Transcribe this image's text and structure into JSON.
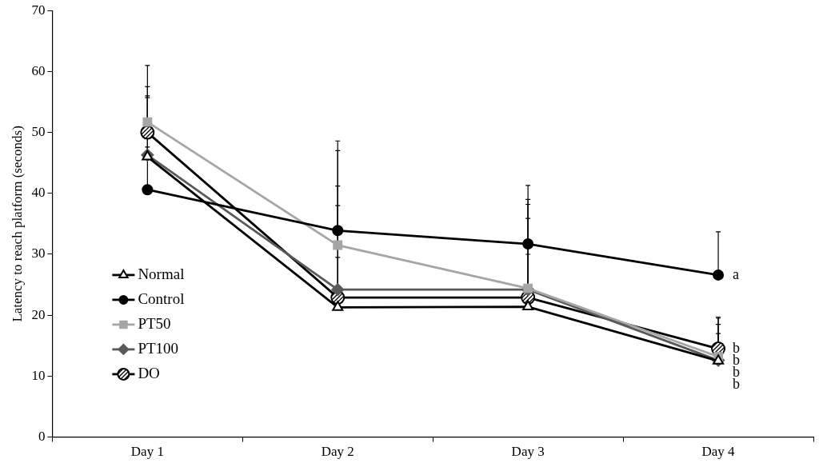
{
  "chart_data": {
    "type": "line",
    "y_label": "Latency to reach platform (seconds)",
    "categories": [
      "Day 1",
      "Day 2",
      "Day 3",
      "Day 4"
    ],
    "ylim": [
      0,
      70
    ],
    "yticks": [
      0,
      10,
      20,
      30,
      40,
      50,
      60,
      70
    ],
    "grid": false,
    "legend": "left",
    "series": [
      {
        "name": "Normal",
        "color": "#000000",
        "marker": "open_triangle",
        "values": [
          46.0,
          21.3,
          21.4,
          12.5
        ],
        "errors": [
          10.0,
          8.2,
          8.6,
          4.5
        ],
        "significance": "b"
      },
      {
        "name": "Control",
        "color": "#000000",
        "marker": "circle",
        "values": [
          40.6,
          33.9,
          31.7,
          26.6
        ],
        "errors": [
          7.0,
          14.7,
          9.6,
          7.1
        ],
        "significance": "a"
      },
      {
        "name": "PT50",
        "color": "#a6a6a6",
        "marker": "square",
        "values": [
          51.7,
          31.5,
          24.4,
          13.2
        ],
        "errors": [
          9.3,
          15.5,
          14.6,
          6.3
        ],
        "significance": "b"
      },
      {
        "name": "PT100",
        "color": "#595959",
        "marker": "diamond",
        "values": [
          46.3,
          24.2,
          24.2,
          12.6
        ],
        "errors": [
          9.4,
          17.0,
          14.0,
          5.9
        ],
        "significance": "b"
      },
      {
        "name": "DO",
        "color": "#000000",
        "marker": "hatched_circle",
        "values": [
          50.0,
          22.9,
          22.9,
          14.5
        ],
        "errors": [
          7.5,
          15.1,
          13.0,
          5.2
        ],
        "significance": "b"
      }
    ]
  }
}
